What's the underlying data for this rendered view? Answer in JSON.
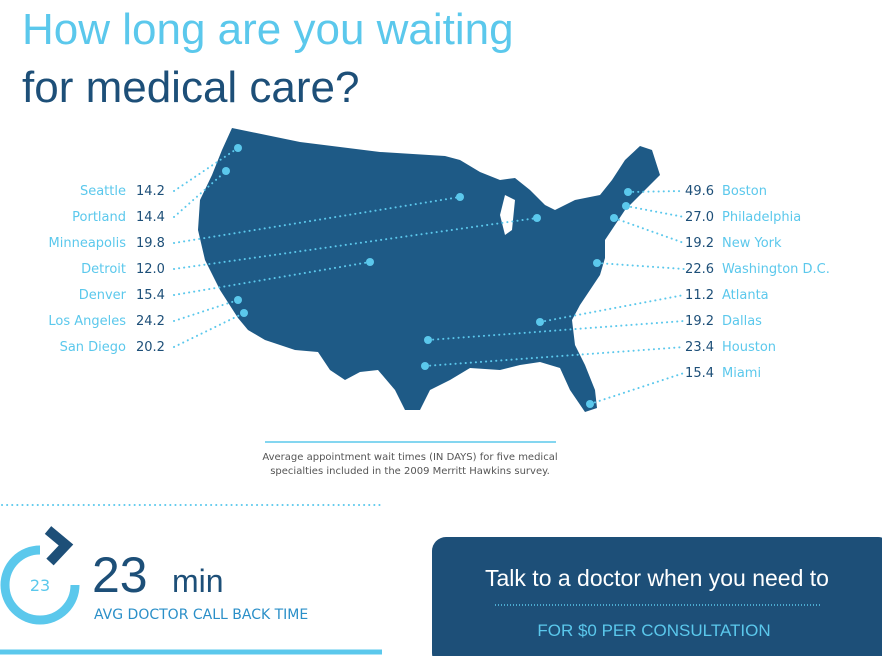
{
  "title": {
    "line1": "How long are you waiting",
    "line2": "for medical care?"
  },
  "cities": {
    "left": [
      {
        "name": "Seattle",
        "value": "14.2"
      },
      {
        "name": "Portland",
        "value": "14.4"
      },
      {
        "name": "Minneapolis",
        "value": "19.8"
      },
      {
        "name": "Detroit",
        "value": "12.0"
      },
      {
        "name": "Denver",
        "value": "15.4"
      },
      {
        "name": "Los Angeles",
        "value": "24.2"
      },
      {
        "name": "San Diego",
        "value": "20.2"
      }
    ],
    "right": [
      {
        "name": "Boston",
        "value": "49.6"
      },
      {
        "name": "Philadelphia",
        "value": "27.0"
      },
      {
        "name": "New York",
        "value": "19.2"
      },
      {
        "name": "Washington D.C.",
        "value": "22.6"
      },
      {
        "name": "Atlanta",
        "value": "11.2"
      },
      {
        "name": "Dallas",
        "value": "19.2"
      },
      {
        "name": "Houston",
        "value": "23.4"
      },
      {
        "name": "Miami",
        "value": "15.4"
      }
    ]
  },
  "caption": [
    "Average appointment wait times (IN DAYS) for five medical",
    "specialties included in the 2009 Merritt Hawkins survey."
  ],
  "stat": {
    "icon_label": "23",
    "value": "23",
    "unit": "min",
    "label": "AVG DOCTOR CALL BACK TIME"
  },
  "cta": {
    "text": "Talk to a doctor when you need to",
    "subtext": "FOR $0 PER CONSULTATION"
  }
}
